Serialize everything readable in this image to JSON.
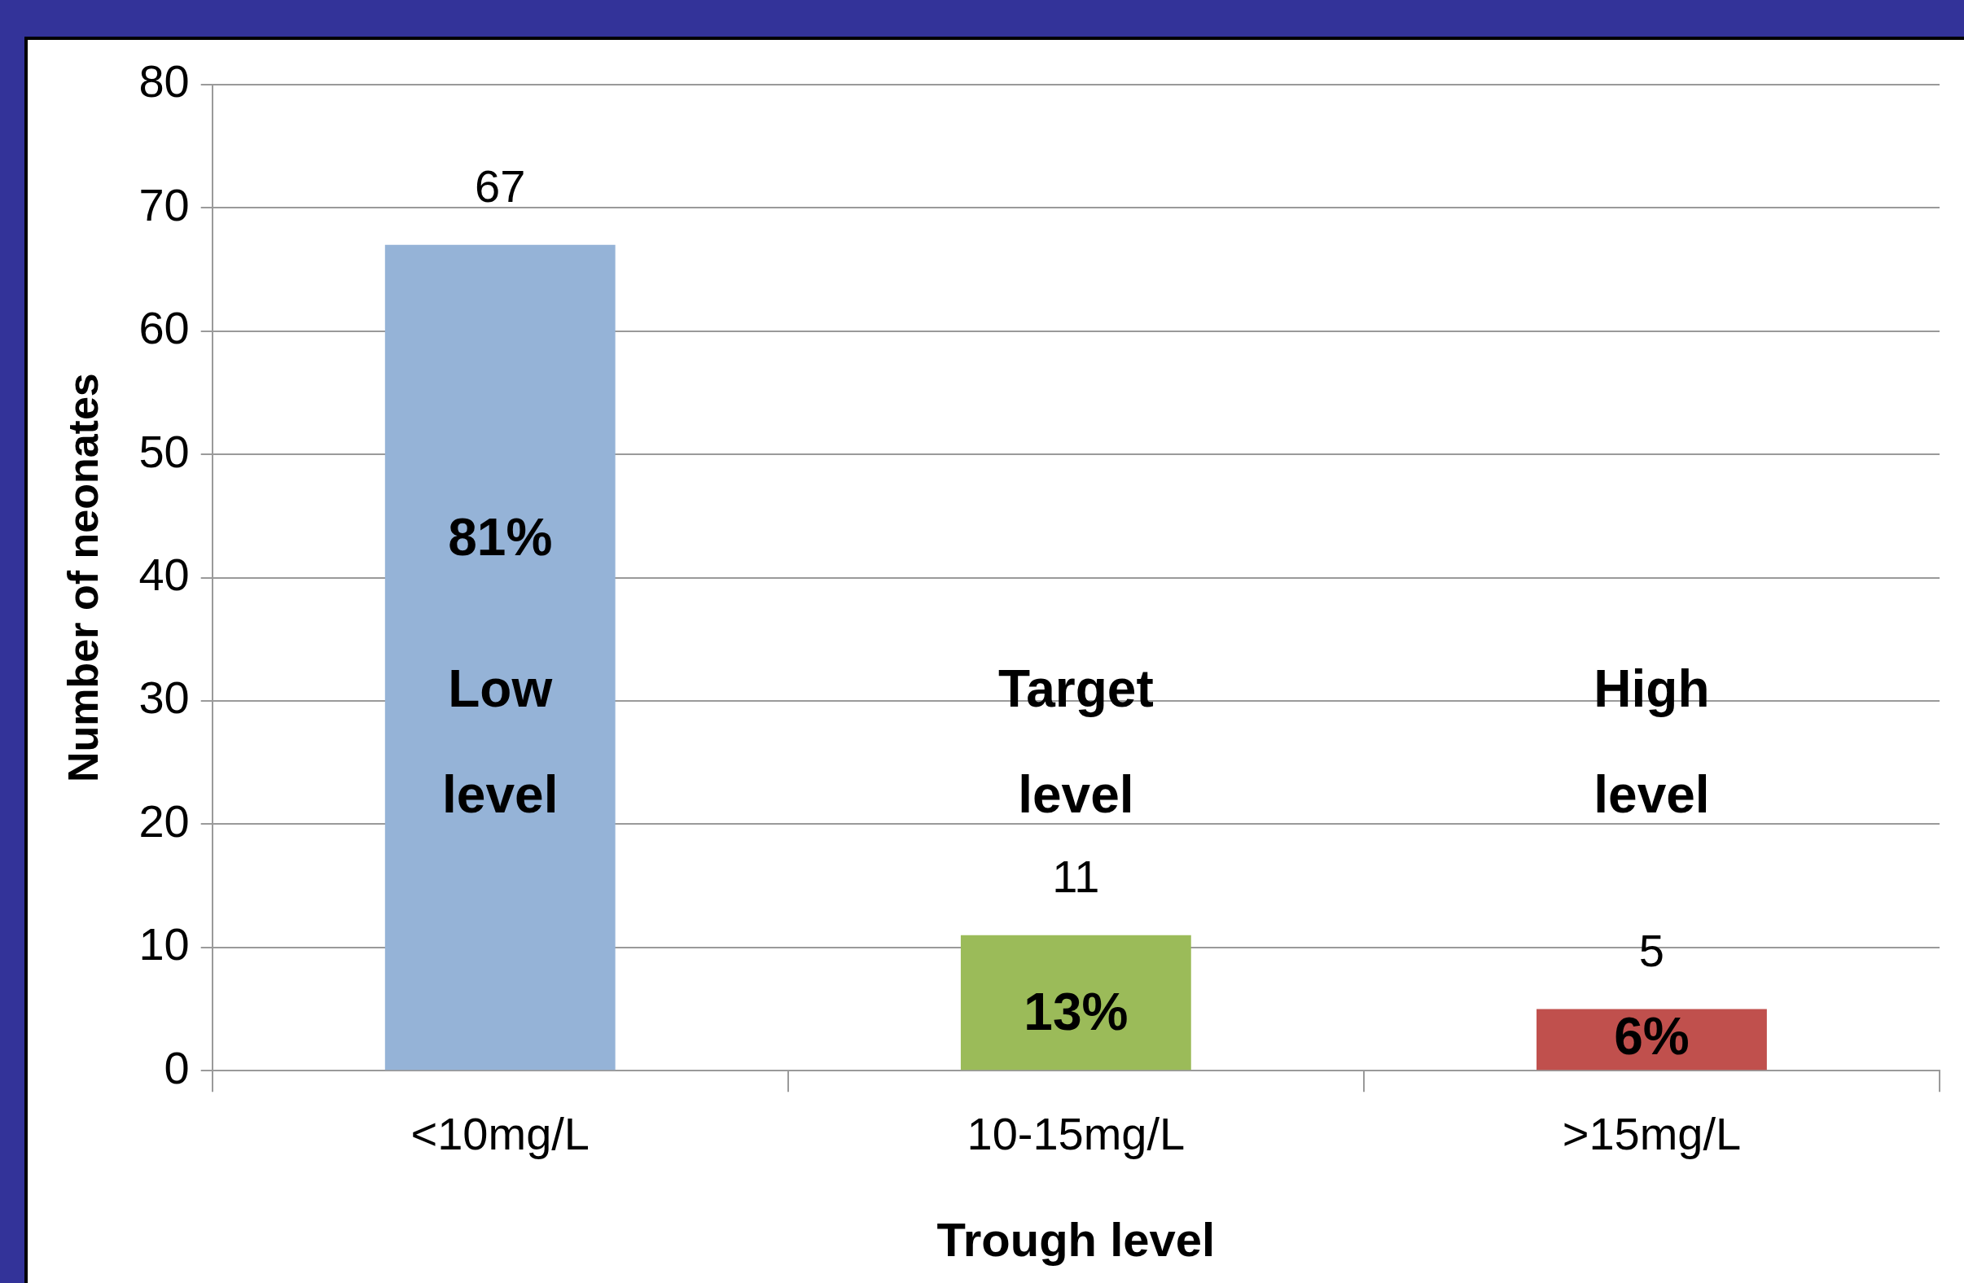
{
  "chart_data": {
    "type": "bar",
    "xlabel": "Trough level",
    "ylabel": "Number of neonates",
    "categories": [
      "<10mg/L",
      "10-15mg/L",
      ">15mg/L"
    ],
    "values": [
      67,
      11,
      5
    ],
    "colors": [
      "#95b3d7",
      "#9bbb59",
      "#c0504d"
    ],
    "ylim": [
      0,
      80
    ],
    "yticks": [
      0,
      10,
      20,
      30,
      40,
      50,
      60,
      70,
      80
    ],
    "grid": "y",
    "legend": false,
    "data_labels": true,
    "annotations": [
      "81%",
      "Low level",
      "Target level",
      "13%",
      "High level",
      "6%"
    ]
  }
}
